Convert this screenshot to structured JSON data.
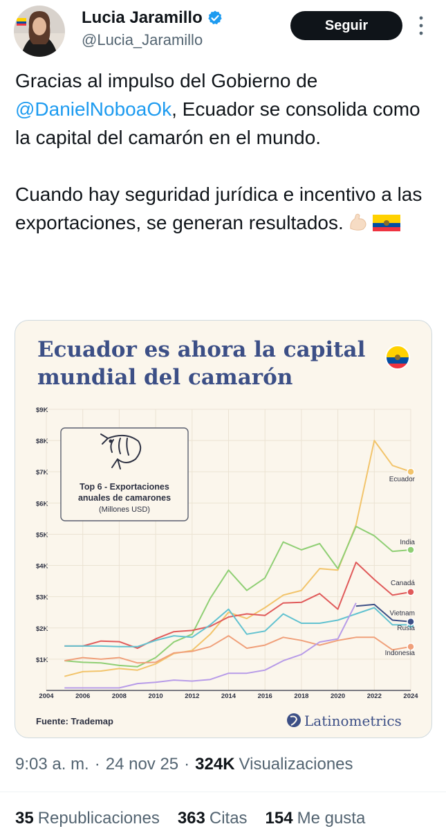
{
  "author": {
    "display_name": "Lucia Jaramillo",
    "handle": "@Lucia_Jaramillo",
    "verified": true
  },
  "actions": {
    "follow_label": "Seguir"
  },
  "tweet": {
    "line_1_before_mention": "Gracias al impulso del Gobierno de",
    "mention": "@DanielNoboaOk",
    "line_2_after_mention": ", Ecuador se consolida como la capital del camarón en el mundo.",
    "paragraph_2": "Cuando hay seguridad jurídica e incentivo a las exportaciones, se generan resultados.",
    "emojis": [
      "flexed-biceps-icon",
      "ecuador-flag-icon"
    ]
  },
  "media": {
    "title_line_1": "Ecuador es ahora la capital",
    "title_line_2": "mundial del camarón",
    "infobox": {
      "line_1": "Top 6 - Exportaciones",
      "line_2": "anuales de camarones",
      "line_3": "(Millones USD)"
    },
    "source": "Fuente: Trademap",
    "brand": "Latinometrics",
    "colors": {
      "Ecuador": "#f2c46b",
      "India": "#8fcf74",
      "Canadá": "#e05a5a",
      "Vietnam": "#62c2d0",
      "Rusia": "#3c4f86",
      "Indonesia": "#f0a07a",
      "violet": "#b79be8",
      "title": "#3c4f86"
    }
  },
  "chart_data": {
    "type": "line",
    "title": "Ecuador es ahora la capital mundial del camarón",
    "subtitle": "Top 6 - Exportaciones anuales de camarones (Millones USD)",
    "xlim": [
      2004,
      2024
    ],
    "ylim": [
      0,
      9000
    ],
    "x_ticks": [
      "2004",
      "2006",
      "2008",
      "2010",
      "2012",
      "2014",
      "2016",
      "2018",
      "2020",
      "2022",
      "2024"
    ],
    "y_ticks": [
      "$1K",
      "$2K",
      "$3K",
      "$4K",
      "$5K",
      "$6K",
      "$7K",
      "$8K",
      "$9K"
    ],
    "grid": true,
    "legend_placement": "right-end labels",
    "x": [
      2005,
      2006,
      2007,
      2008,
      2009,
      2010,
      2011,
      2012,
      2013,
      2014,
      2015,
      2016,
      2017,
      2018,
      2019,
      2020,
      2021,
      2022,
      2023,
      2024
    ],
    "series": [
      {
        "name": "Ecuador",
        "values": [
          450,
          600,
          620,
          700,
          650,
          850,
          1180,
          1280,
          1800,
          2500,
          2300,
          2650,
          3050,
          3200,
          3900,
          3850,
          5300,
          8000,
          7200,
          7000
        ]
      },
      {
        "name": "India",
        "values": [
          950,
          900,
          880,
          800,
          760,
          1050,
          1550,
          1800,
          2950,
          3850,
          3200,
          3600,
          4750,
          4500,
          4700,
          3900,
          5250,
          4950,
          4450,
          4500
        ]
      },
      {
        "name": "Canadá",
        "values": [
          1420,
          1420,
          1580,
          1560,
          1350,
          1650,
          1880,
          1920,
          2050,
          2350,
          2450,
          2400,
          2800,
          2820,
          3100,
          2600,
          4100,
          3550,
          3050,
          3150
        ]
      },
      {
        "name": "Vietnam",
        "values": [
          1420,
          1420,
          1420,
          1400,
          1400,
          1600,
          1750,
          1700,
          2100,
          2600,
          1800,
          1900,
          2450,
          2150,
          2150,
          2250,
          2450,
          2650,
          2100,
          2100
        ]
      },
      {
        "name": "Rusia",
        "values": [
          null,
          null,
          null,
          null,
          null,
          null,
          null,
          null,
          null,
          null,
          null,
          null,
          null,
          null,
          null,
          null,
          2700,
          2750,
          2250,
          2200
        ]
      },
      {
        "name": "Indonesia",
        "values": [
          950,
          1050,
          1000,
          1050,
          880,
          900,
          1200,
          1250,
          1400,
          1750,
          1350,
          1450,
          1700,
          1600,
          1450,
          1600,
          1700,
          1700,
          1300,
          1400
        ]
      },
      {
        "name": "",
        "values": [
          80,
          80,
          80,
          80,
          220,
          260,
          330,
          300,
          350,
          550,
          550,
          650,
          950,
          1150,
          1550,
          1650,
          2800,
          null,
          null,
          null
        ]
      }
    ]
  },
  "footer": {
    "time": "9:03 a. m.",
    "date": "24 nov 25",
    "views_count": "324K",
    "views_label": "Visualizaciones",
    "reposts_count": "35",
    "reposts_label": "Republicaciones",
    "quotes_count": "363",
    "quotes_label": "Citas",
    "likes_count": "154",
    "likes_label": "Me gusta"
  }
}
